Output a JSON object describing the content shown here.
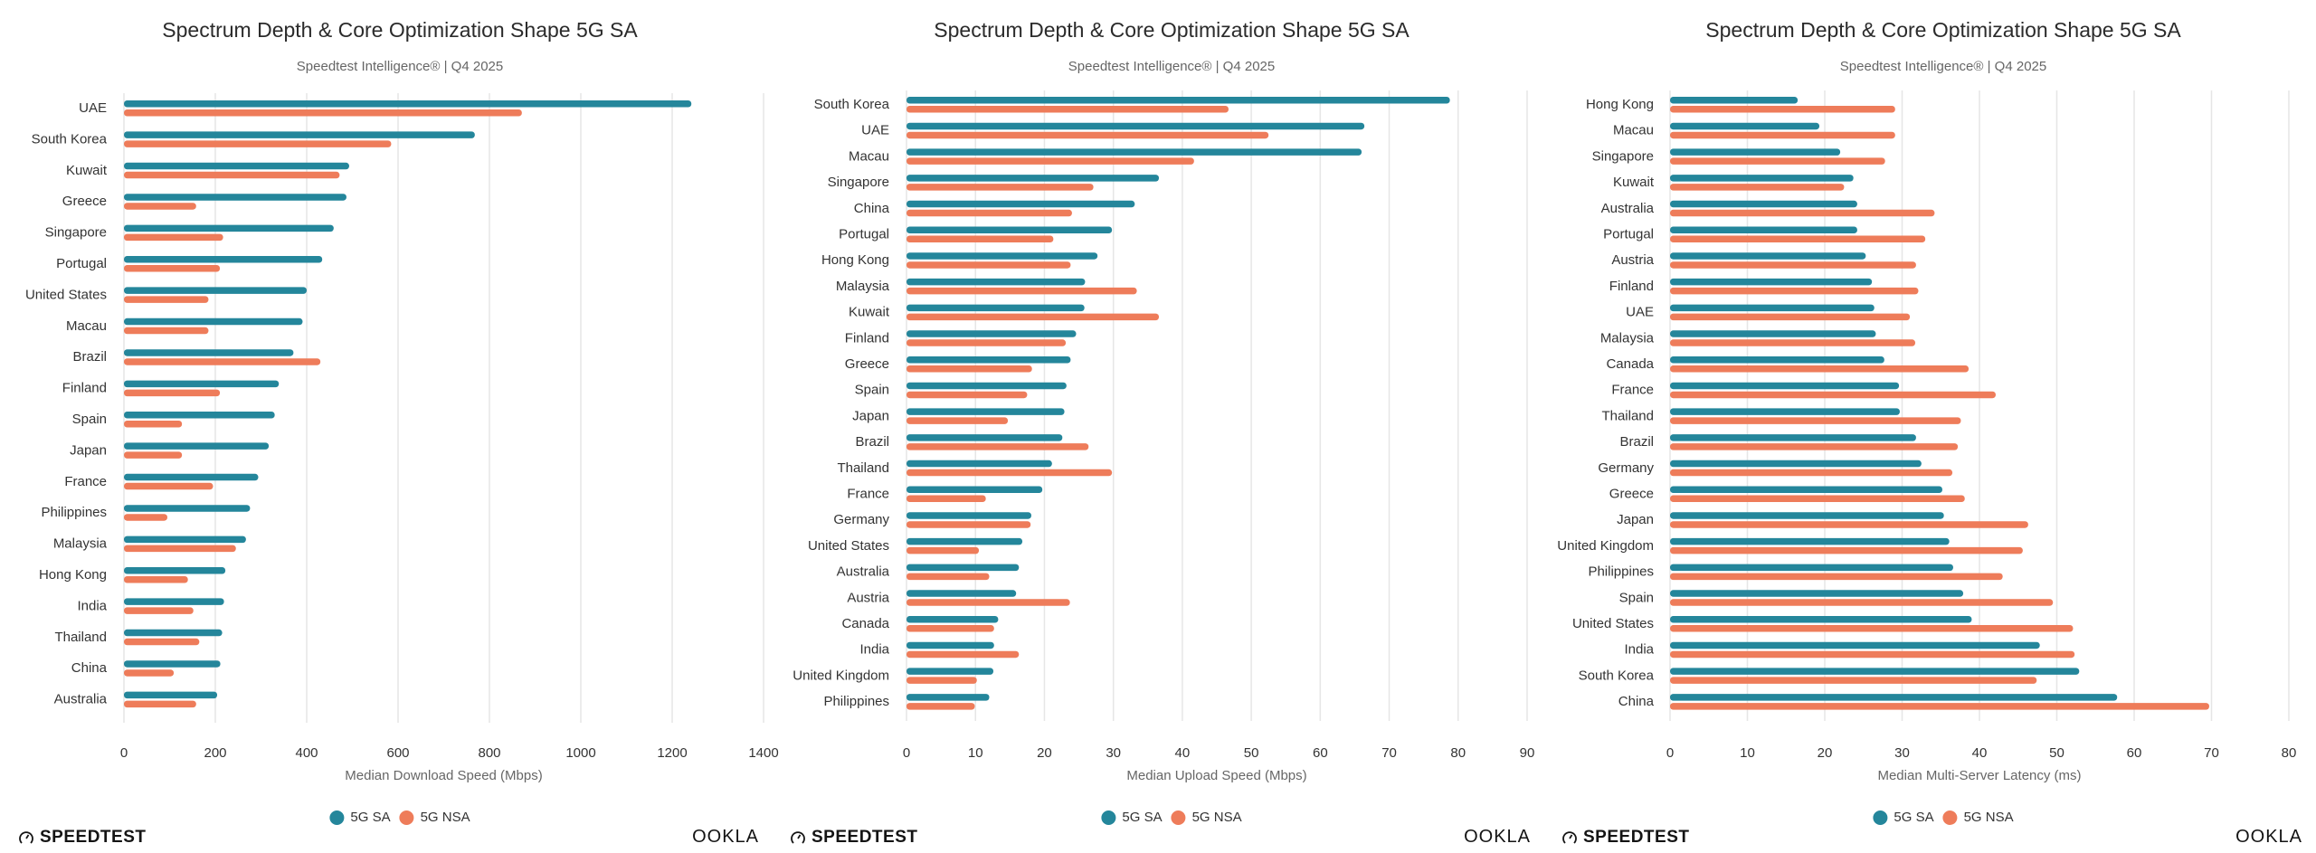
{
  "colors": {
    "sa": "#24869b",
    "nsa": "#ee7c5a",
    "grid": "#e6e6e6",
    "text": "#333333"
  },
  "legend": {
    "sa_label": "5G SA",
    "nsa_label": "5G NSA"
  },
  "logos": {
    "speedtest": "SPEEDTEST",
    "ookla": "OOKLA"
  },
  "chart_data": [
    {
      "type": "bar",
      "orientation": "horizontal",
      "title": "Spectrum Depth & Core Optimization Shape 5G SA",
      "subtitle": "Speedtest Intelligence® | Q4 2025",
      "xlabel": "Median Download Speed (Mbps)",
      "xlim": [
        0,
        1400
      ],
      "xticks": [
        "0",
        "200",
        "400",
        "600",
        "800",
        "1000",
        "1200",
        "1400"
      ],
      "grid": true,
      "legend": "bottom",
      "categories": [
        "UAE",
        "South Korea",
        "Kuwait",
        "Greece",
        "Singapore",
        "Portugal",
        "United States",
        "Macau",
        "Brazil",
        "Finland",
        "Spain",
        "Japan",
        "France",
        "Philippines",
        "Malaysia",
        "Hong Kong",
        "India",
        "Thailand",
        "China",
        "Australia"
      ],
      "series": [
        {
          "name": "5G SA",
          "values": [
            1242,
            768,
            493,
            487,
            459,
            434,
            400,
            391,
            371,
            339,
            330,
            317,
            294,
            276,
            267,
            222,
            219,
            215,
            211,
            204
          ]
        },
        {
          "name": "5G NSA",
          "values": [
            871,
            585,
            472,
            158,
            217,
            210,
            185,
            185,
            430,
            210,
            127,
            127,
            195,
            95,
            245,
            140,
            152,
            165,
            109,
            158
          ]
        }
      ]
    },
    {
      "type": "bar",
      "orientation": "horizontal",
      "title": "Spectrum Depth & Core Optimization Shape 5G SA",
      "subtitle": "Speedtest Intelligence® | Q4 2025",
      "xlabel": "Median Upload Speed (Mbps)",
      "xlim": [
        0,
        90
      ],
      "xticks": [
        "0",
        "10",
        "20",
        "30",
        "40",
        "50",
        "60",
        "70",
        "80",
        "90"
      ],
      "grid": true,
      "legend": "bottom",
      "categories": [
        "South Korea",
        "UAE",
        "Macau",
        "Singapore",
        "China",
        "Portugal",
        "Hong Kong",
        "Malaysia",
        "Kuwait",
        "Finland",
        "Greece",
        "Spain",
        "Japan",
        "Brazil",
        "Thailand",
        "France",
        "Germany",
        "United States",
        "Australia",
        "Austria",
        "Canada",
        "India",
        "United Kingdom",
        "Philippines"
      ],
      "series": [
        {
          "name": "5G SA",
          "values": [
            78.8,
            66.4,
            66.0,
            36.6,
            33.1,
            29.8,
            27.7,
            25.9,
            25.8,
            24.6,
            23.8,
            23.2,
            22.9,
            22.6,
            21.1,
            19.7,
            18.1,
            16.8,
            16.3,
            15.9,
            13.3,
            12.7,
            12.6,
            12.0
          ]
        },
        {
          "name": "5G NSA",
          "values": [
            46.7,
            52.5,
            41.7,
            27.1,
            24.0,
            21.3,
            23.8,
            33.4,
            36.6,
            23.1,
            18.2,
            17.5,
            14.7,
            26.4,
            29.8,
            11.5,
            18.0,
            10.5,
            12.0,
            23.7,
            12.7,
            16.3,
            10.2,
            9.9
          ]
        }
      ]
    },
    {
      "type": "bar",
      "orientation": "horizontal",
      "title": "Spectrum Depth & Core Optimization Shape 5G SA",
      "subtitle": "Speedtest Intelligence® | Q4 2025",
      "xlabel": "Median Multi-Server Latency (ms)",
      "xlim": [
        0,
        80
      ],
      "xticks": [
        "0",
        "10",
        "20",
        "30",
        "40",
        "50",
        "60",
        "70",
        "80"
      ],
      "grid": true,
      "legend": "bottom",
      "categories": [
        "Hong Kong",
        "Macau",
        "Singapore",
        "Kuwait",
        "Australia",
        "Portugal",
        "Austria",
        "Finland",
        "UAE",
        "Malaysia",
        "Canada",
        "France",
        "Thailand",
        "Brazil",
        "Germany",
        "Greece",
        "Japan",
        "United Kingdom",
        "Philippines",
        "Spain",
        "United States",
        "India",
        "South Korea",
        "China"
      ],
      "series": [
        {
          "name": "5G SA",
          "values": [
            16.5,
            19.3,
            22.0,
            23.7,
            24.2,
            24.2,
            25.3,
            26.1,
            26.4,
            26.6,
            27.7,
            29.6,
            29.7,
            31.8,
            32.5,
            35.2,
            35.4,
            36.1,
            36.6,
            37.9,
            39.0,
            47.8,
            52.9,
            57.8
          ]
        },
        {
          "name": "5G NSA",
          "values": [
            29.1,
            29.1,
            27.8,
            22.5,
            34.2,
            33.0,
            31.8,
            32.1,
            31.0,
            31.7,
            38.6,
            42.1,
            37.6,
            37.2,
            36.5,
            38.1,
            46.3,
            45.6,
            43.0,
            49.5,
            52.1,
            52.3,
            47.4,
            69.7
          ]
        }
      ]
    }
  ]
}
